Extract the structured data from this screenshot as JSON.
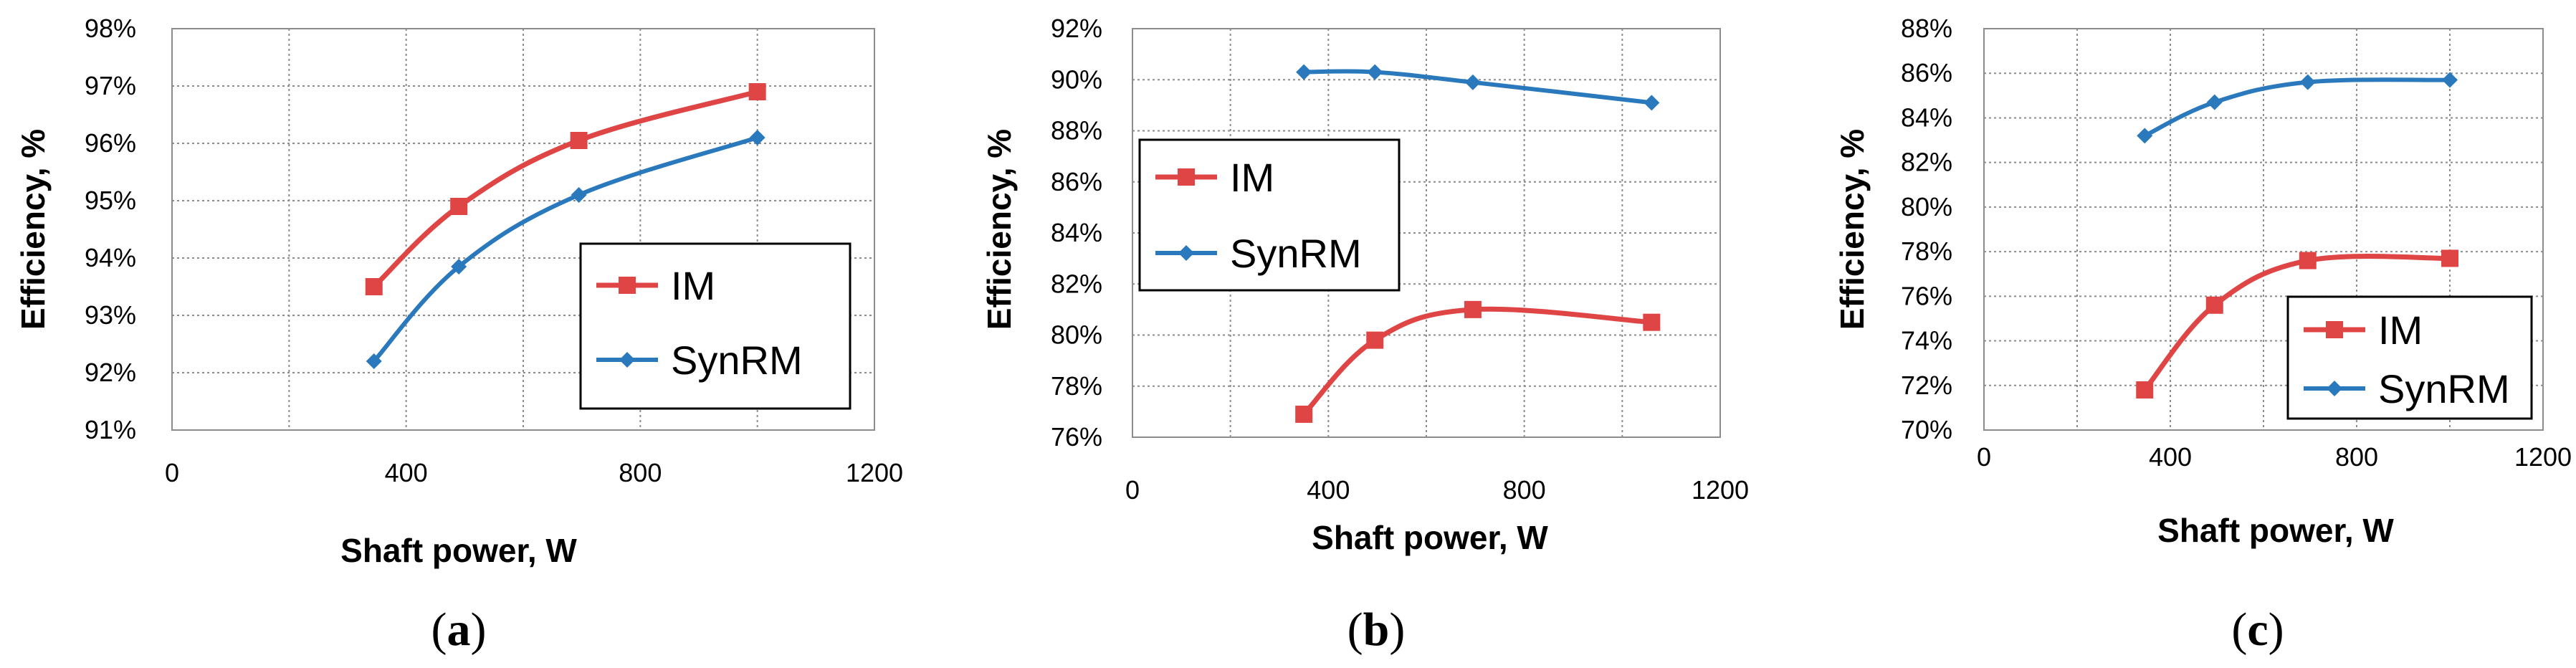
{
  "colors": {
    "im": "#e04545",
    "synrm": "#2a79bd",
    "grid": "#8c8c8c",
    "axis": "#8c8c8c",
    "legend_border": "#000000"
  },
  "chart_data": [
    {
      "type": "line",
      "panel": "a",
      "label_open": "(",
      "label_letter": "a",
      "label_close": ")",
      "xlabel": "Shaft power, W",
      "ylabel": "Efficiency, %",
      "xlim": [
        0,
        1200
      ],
      "ylim": [
        91,
        98
      ],
      "x_ticks": [
        0,
        400,
        800,
        1200
      ],
      "x_tick_labels": [
        "0",
        "400",
        "800",
        "1200"
      ],
      "y_ticks": [
        91,
        92,
        93,
        94,
        95,
        96,
        97,
        98
      ],
      "y_tick_labels": [
        "91%",
        "92%",
        "93%",
        "94%",
        "95%",
        "96%",
        "97%",
        "98%"
      ],
      "x_minor_grid": [
        200,
        600,
        1000
      ],
      "legend_position": "bottom-right",
      "series": [
        {
          "name": "IM",
          "marker": "square",
          "x": [
            345,
            490,
            695,
            1000
          ],
          "y": [
            93.5,
            94.9,
            96.05,
            96.9
          ]
        },
        {
          "name": "SynRM",
          "marker": "diamond",
          "x": [
            345,
            490,
            695,
            1000
          ],
          "y": [
            92.2,
            93.85,
            95.1,
            96.1
          ]
        }
      ]
    },
    {
      "type": "line",
      "panel": "b",
      "label_open": "(",
      "label_letter": "b",
      "label_close": ")",
      "xlabel": "Shaft power, W",
      "ylabel": "Efficiency, %",
      "xlim": [
        0,
        1200
      ],
      "ylim": [
        76,
        92
      ],
      "x_ticks": [
        0,
        400,
        800,
        1200
      ],
      "x_tick_labels": [
        "0",
        "400",
        "800",
        "1200"
      ],
      "y_ticks": [
        76,
        78,
        80,
        82,
        84,
        86,
        88,
        90,
        92
      ],
      "y_tick_labels": [
        "76%",
        "78%",
        "80%",
        "82%",
        "84%",
        "86%",
        "88%",
        "90%",
        "92%"
      ],
      "x_minor_grid": [
        200,
        600,
        1000
      ],
      "legend_position": "center-left",
      "series": [
        {
          "name": "IM",
          "marker": "square",
          "x": [
            350,
            495,
            695,
            1060
          ],
          "y": [
            76.9,
            79.8,
            81.0,
            80.5
          ]
        },
        {
          "name": "SynRM",
          "marker": "diamond",
          "x": [
            350,
            495,
            695,
            1060
          ],
          "y": [
            90.3,
            90.3,
            89.9,
            89.1
          ]
        }
      ]
    },
    {
      "type": "line",
      "panel": "c",
      "label_open": "(",
      "label_letter": "c",
      "label_close": ")",
      "xlabel": "Shaft power, W",
      "ylabel": "Efficiency, %",
      "xlim": [
        0,
        1200
      ],
      "ylim": [
        70,
        88
      ],
      "x_ticks": [
        0,
        400,
        800,
        1200
      ],
      "x_tick_labels": [
        "0",
        "400",
        "800",
        "1200"
      ],
      "y_ticks": [
        70,
        72,
        74,
        76,
        78,
        80,
        82,
        84,
        86,
        88
      ],
      "y_tick_labels": [
        "70%",
        "72%",
        "74%",
        "76%",
        "78%",
        "80%",
        "82%",
        "84%",
        "86%",
        "88%"
      ],
      "x_minor_grid": [
        200,
        600,
        1000
      ],
      "legend_position": "bottom-right",
      "series": [
        {
          "name": "IM",
          "marker": "square",
          "x": [
            345,
            495,
            695,
            1000
          ],
          "y": [
            71.8,
            75.6,
            77.6,
            77.7
          ]
        },
        {
          "name": "SynRM",
          "marker": "diamond",
          "x": [
            345,
            495,
            695,
            1000
          ],
          "y": [
            83.2,
            84.7,
            85.6,
            85.7
          ]
        }
      ]
    }
  ]
}
